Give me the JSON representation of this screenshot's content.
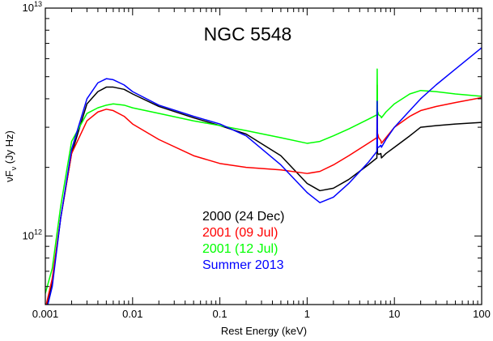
{
  "chart_data": {
    "type": "line",
    "title": "NGC 5548",
    "xlabel": "Rest Energy (keV)",
    "ylabel": "νF",
    "ylabel_sub": "ν",
    "ylabel_unit": "(Jy Hz)",
    "x_scale": "log",
    "y_scale": "log",
    "xlim": [
      0.001,
      100
    ],
    "ylim": [
      500000000000.0,
      10000000000000.0
    ],
    "x_ticks": [
      {
        "value": 0.001,
        "label": "0.001"
      },
      {
        "value": 0.01,
        "label": "0.01"
      },
      {
        "value": 0.1,
        "label": "0.1"
      },
      {
        "value": 1,
        "label": "1"
      },
      {
        "value": 10,
        "label": "10"
      },
      {
        "value": 100,
        "label": "100"
      }
    ],
    "y_tick_labels": [
      {
        "value": 1000000000000.0,
        "base": "10",
        "exp": "12"
      },
      {
        "value": 10000000000000.0,
        "base": "10",
        "exp": "13"
      }
    ],
    "legend_placement": "center",
    "series": [
      {
        "name": "2000 (24 Dec)",
        "color": "#000000",
        "x": [
          0.001,
          0.0012,
          0.0015,
          0.002,
          0.003,
          0.004,
          0.005,
          0.006,
          0.008,
          0.01,
          0.02,
          0.05,
          0.1,
          0.2,
          0.5,
          1.0,
          1.4,
          2.0,
          3.0,
          5.0,
          6.3,
          6.35,
          6.4,
          6.45,
          6.6,
          7.0,
          7.1,
          8.0,
          10,
          15,
          20,
          30,
          50,
          100
        ],
        "y": [
          460000000000.0,
          620000000000.0,
          1200000000000.0,
          2300000000000.0,
          3800000000000.0,
          4300000000000.0,
          4500000000000.0,
          4500000000000.0,
          4400000000000.0,
          4200000000000.0,
          3700000000000.0,
          3300000000000.0,
          3050000000000.0,
          2800000000000.0,
          2250000000000.0,
          1700000000000.0,
          1580000000000.0,
          1620000000000.0,
          1770000000000.0,
          2050000000000.0,
          2200000000000.0,
          3700000000000.0,
          2300000000000.0,
          2300000000000.0,
          2280000000000.0,
          2300000000000.0,
          2200000000000.0,
          2300000000000.0,
          2450000000000.0,
          2750000000000.0,
          3000000000000.0,
          3050000000000.0,
          3100000000000.0,
          3150000000000.0
        ]
      },
      {
        "name": "2001 (09 Jul)",
        "color": "#ff0000",
        "x": [
          0.001,
          0.0012,
          0.0015,
          0.002,
          0.003,
          0.004,
          0.005,
          0.006,
          0.008,
          0.01,
          0.02,
          0.05,
          0.1,
          0.2,
          0.5,
          1.0,
          1.4,
          2.0,
          3.0,
          5.0,
          6.3,
          6.35,
          6.4,
          6.45,
          6.6,
          7.0,
          7.1,
          8.0,
          10,
          15,
          20,
          30,
          50,
          100
        ],
        "y": [
          480000000000.0,
          650000000000.0,
          1200000000000.0,
          2300000000000.0,
          3200000000000.0,
          3500000000000.0,
          3600000000000.0,
          3550000000000.0,
          3350000000000.0,
          3100000000000.0,
          2650000000000.0,
          2250000000000.0,
          2080000000000.0,
          2000000000000.0,
          1950000000000.0,
          1880000000000.0,
          1920000000000.0,
          2050000000000.0,
          2250000000000.0,
          2550000000000.0,
          2700000000000.0,
          4600000000000.0,
          2800000000000.0,
          2800000000000.0,
          2700000000000.0,
          2620000000000.0,
          2550000000000.0,
          2700000000000.0,
          3000000000000.0,
          3350000000000.0,
          3550000000000.0,
          3700000000000.0,
          3850000000000.0,
          4050000000000.0
        ]
      },
      {
        "name": "2001 (12 Jul)",
        "color": "#00ff00",
        "x": [
          0.001,
          0.0012,
          0.0015,
          0.002,
          0.003,
          0.004,
          0.005,
          0.006,
          0.008,
          0.01,
          0.02,
          0.05,
          0.1,
          0.2,
          0.5,
          1.0,
          1.4,
          2.0,
          3.0,
          5.0,
          6.3,
          6.35,
          6.4,
          6.45,
          6.6,
          7.0,
          7.1,
          8.0,
          10,
          15,
          20,
          30,
          50,
          100
        ],
        "y": [
          560000000000.0,
          720000000000.0,
          1350000000000.0,
          2600000000000.0,
          3450000000000.0,
          3650000000000.0,
          3750000000000.0,
          3800000000000.0,
          3750000000000.0,
          3650000000000.0,
          3450000000000.0,
          3200000000000.0,
          3050000000000.0,
          2900000000000.0,
          2700000000000.0,
          2550000000000.0,
          2600000000000.0,
          2750000000000.0,
          2950000000000.0,
          3250000000000.0,
          3400000000000.0,
          5400000000000.0,
          3500000000000.0,
          3500000000000.0,
          3400000000000.0,
          3350000000000.0,
          3300000000000.0,
          3500000000000.0,
          3800000000000.0,
          4200000000000.0,
          4350000000000.0,
          4300000000000.0,
          4200000000000.0,
          4100000000000.0
        ]
      },
      {
        "name": "Summer 2013",
        "color": "#0000ff",
        "x": [
          0.001,
          0.0012,
          0.0015,
          0.002,
          0.003,
          0.004,
          0.005,
          0.006,
          0.008,
          0.01,
          0.02,
          0.05,
          0.1,
          0.2,
          0.5,
          1.0,
          1.4,
          2.0,
          3.0,
          5.0,
          6.3,
          6.35,
          6.4,
          6.45,
          6.6,
          7.0,
          7.1,
          8.0,
          10,
          15,
          20,
          30,
          50,
          100
        ],
        "y": [
          450000000000.0,
          600000000000.0,
          1200000000000.0,
          2400000000000.0,
          4000000000000.0,
          4700000000000.0,
          4900000000000.0,
          4850000000000.0,
          4600000000000.0,
          4300000000000.0,
          3750000000000.0,
          3350000000000.0,
          3100000000000.0,
          2750000000000.0,
          2050000000000.0,
          1550000000000.0,
          1400000000000.0,
          1480000000000.0,
          1700000000000.0,
          2100000000000.0,
          2350000000000.0,
          3900000000000.0,
          2450000000000.0,
          2450000000000.0,
          2450000000000.0,
          2500000000000.0,
          2450000000000.0,
          2650000000000.0,
          3000000000000.0,
          3550000000000.0,
          4000000000000.0,
          4600000000000.0,
          5400000000000.0,
          6700000000000.0
        ]
      }
    ]
  }
}
